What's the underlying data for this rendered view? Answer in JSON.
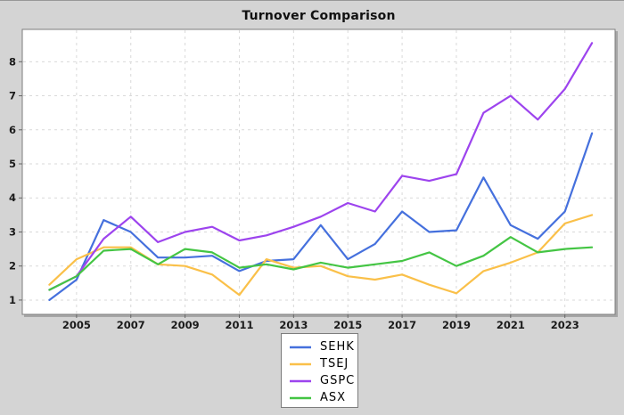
{
  "window": {
    "background_color": "#d4d4d4",
    "plot_background_color": "#ffffff",
    "plot_border_color": "#7d7d7d",
    "plot_shadow_color": "#a6a6a6",
    "grid_color": "#d9d9d9",
    "tick_label_color": "#1a1a1a"
  },
  "chart_data": {
    "type": "line",
    "title": "Turnover Comparison",
    "xlabel": "",
    "ylabel": "",
    "grid": "dashed",
    "legend_position": "bottom-center",
    "xlim": [
      2003.0,
      2024.85
    ],
    "ylim": [
      0.58,
      8.95
    ],
    "x_ticks": [
      2005,
      2007,
      2009,
      2011,
      2013,
      2015,
      2017,
      2019,
      2021,
      2023
    ],
    "x_tick_labels": [
      "2005",
      "2007",
      "2009",
      "2011",
      "2013",
      "2015",
      "2017",
      "2019",
      "2021",
      "2023"
    ],
    "y_ticks": [
      1,
      2,
      3,
      4,
      5,
      6,
      7,
      8
    ],
    "y_tick_labels": [
      "1",
      "2",
      "3",
      "4",
      "5",
      "6",
      "7",
      "8"
    ],
    "x": [
      2004,
      2005,
      2006,
      2007,
      2008,
      2009,
      2010,
      2011,
      2012,
      2013,
      2014,
      2015,
      2016,
      2017,
      2018,
      2019,
      2020,
      2021,
      2022,
      2023,
      2024
    ],
    "series": [
      {
        "name": "SEHK",
        "color": "#4570dd",
        "values": [
          1.0,
          1.6,
          3.35,
          3.0,
          2.25,
          2.25,
          2.3,
          1.85,
          2.15,
          2.2,
          3.2,
          2.2,
          2.65,
          3.6,
          3.0,
          3.05,
          4.6,
          3.2,
          2.8,
          3.6,
          5.9
        ]
      },
      {
        "name": "TSEJ",
        "color": "#fac049",
        "values": [
          1.45,
          2.2,
          2.55,
          2.55,
          2.05,
          2.0,
          1.75,
          1.15,
          2.2,
          1.95,
          2.0,
          1.7,
          1.6,
          1.75,
          1.45,
          1.2,
          1.85,
          2.1,
          2.4,
          3.25,
          3.5
        ]
      },
      {
        "name": "GSPC",
        "color": "#9d44ee",
        "values": [
          1.3,
          1.7,
          2.8,
          3.45,
          2.7,
          3.0,
          3.15,
          2.75,
          2.9,
          3.15,
          3.45,
          3.85,
          3.6,
          4.65,
          4.5,
          4.7,
          6.5,
          7.0,
          6.3,
          7.2,
          8.55
        ]
      },
      {
        "name": "ASX",
        "color": "#44c544",
        "values": [
          1.3,
          1.7,
          2.45,
          2.5,
          2.05,
          2.5,
          2.4,
          1.95,
          2.05,
          1.9,
          2.1,
          1.95,
          2.05,
          2.15,
          2.4,
          2.0,
          2.3,
          2.85,
          2.4,
          2.5,
          2.55
        ]
      }
    ]
  }
}
